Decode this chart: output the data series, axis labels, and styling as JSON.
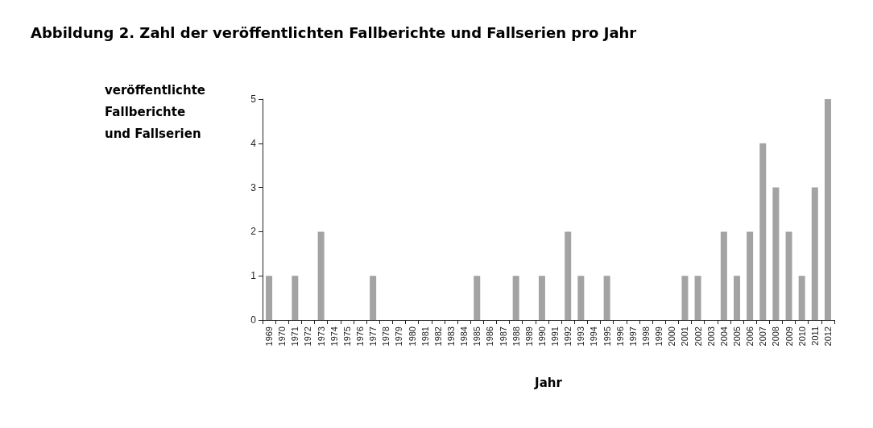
{
  "chart_data": {
    "type": "bar",
    "title": "Abbildung 2. Zahl der veröffentlichten Fallberichte und Fallserien pro Jahr",
    "xlabel": "Jahr",
    "ylabel": "veröffentlichte\nFallberichte\nund Fallserien",
    "categories": [
      "1969",
      "1970",
      "1971",
      "1972",
      "1973",
      "1974",
      "1975",
      "1976",
      "1977",
      "1978",
      "1979",
      "1980",
      "1981",
      "1982",
      "1983",
      "1984",
      "1985",
      "1986",
      "1987",
      "1988",
      "1989",
      "1990",
      "1991",
      "1992",
      "1993",
      "1994",
      "1995",
      "1996",
      "1997",
      "1998",
      "1999",
      "2000",
      "2001",
      "2002",
      "2003",
      "2004",
      "2005",
      "2006",
      "2007",
      "2008",
      "2009",
      "2010",
      "2011",
      "2012"
    ],
    "values": [
      1,
      0,
      1,
      0,
      2,
      0,
      0,
      0,
      1,
      0,
      0,
      0,
      0,
      0,
      0,
      0,
      1,
      0,
      0,
      1,
      0,
      1,
      0,
      2,
      1,
      0,
      1,
      0,
      0,
      0,
      0,
      0,
      1,
      1,
      0,
      2,
      1,
      2,
      4,
      3,
      2,
      1,
      3,
      5
    ],
    "color": "#a3a3a3",
    "ylim": [
      0,
      5
    ],
    "yticks": [
      0,
      1,
      2,
      3,
      4,
      5
    ],
    "grid": false
  }
}
